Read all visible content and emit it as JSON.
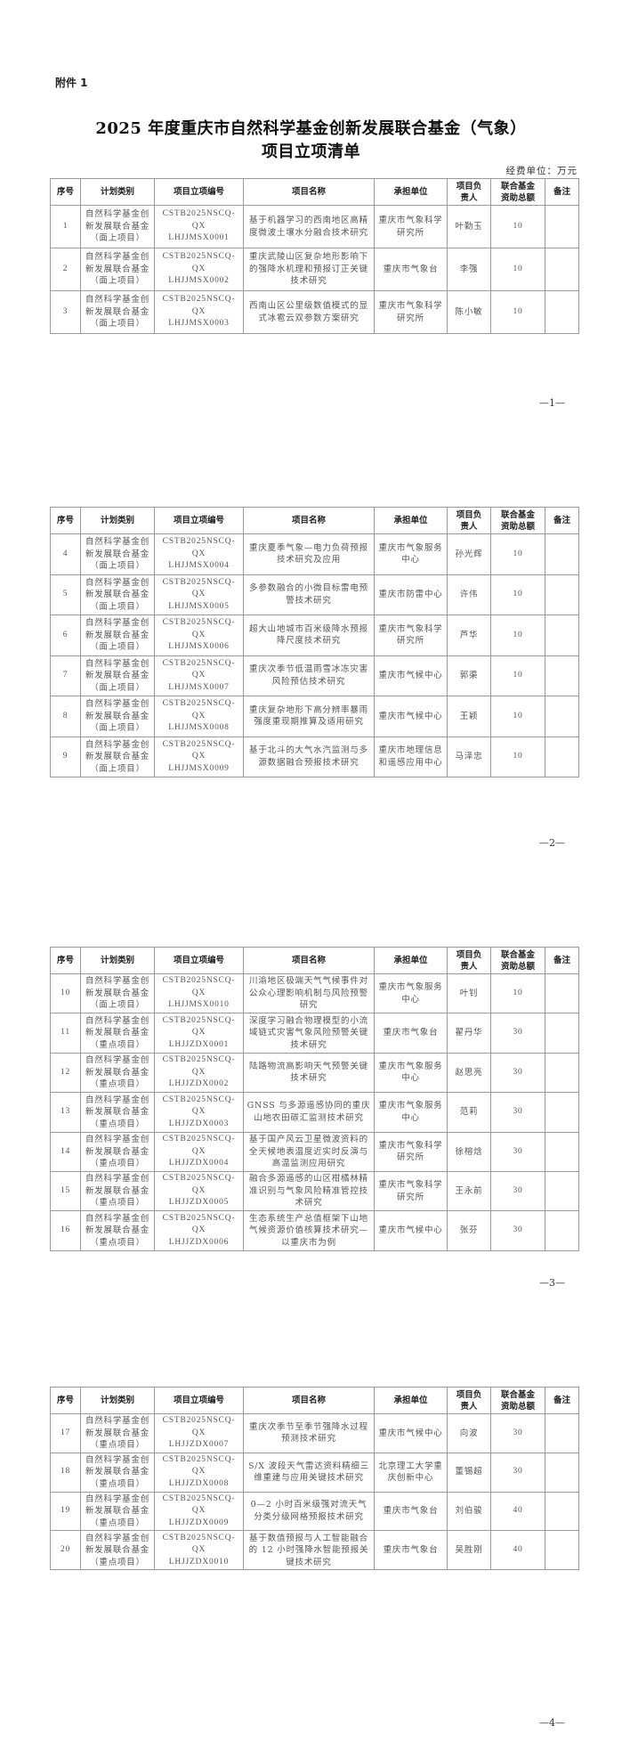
{
  "attachment_label": "附件 1",
  "title_line1": "2025 年度重庆市自然科学基金创新发展联合基金（气象）",
  "title_line2": "项目立项清单",
  "unit_note": "经费单位：万元",
  "headers": [
    "序号",
    "计划类别",
    "项目立项编号",
    "项目名称",
    "承担单位",
    "项目负责人",
    "联合基金资助总额",
    "备注"
  ],
  "page_numbers": [
    "—1—",
    "—2—",
    "—3—",
    "—4—"
  ],
  "rows": [
    {
      "no": "1",
      "category": "自然科学基金创新发展联合基金（面上项目）",
      "code": "CSTB2025NSCQ-QXLHJJMSX0001",
      "name": "基于机器学习的西南地区高精度微波土壤水分融合技术研究",
      "unit": "重庆市气象科学研究所",
      "leader": "叶勤玉",
      "amount": "10",
      "note": ""
    },
    {
      "no": "2",
      "category": "自然科学基金创新发展联合基金（面上项目）",
      "code": "CSTB2025NSCQ-QXLHJJMSX0002",
      "name": "重庆武陵山区复杂地形影响下的强降水机理和预报订正关键技术研究",
      "unit": "重庆市气象台",
      "leader": "李强",
      "amount": "10",
      "note": ""
    },
    {
      "no": "3",
      "category": "自然科学基金创新发展联合基金（面上项目）",
      "code": "CSTB2025NSCQ-QXLHJJMSX0003",
      "name": "西南山区公里级数值模式的显式冰雹云双参数方案研究",
      "unit": "重庆市气象科学研究所",
      "leader": "陈小敏",
      "amount": "10",
      "note": ""
    },
    {
      "no": "4",
      "category": "自然科学基金创新发展联合基金（面上项目）",
      "code": "CSTB2025NSCQ-QXLHJJMSX0004",
      "name": "重庆夏季气象—电力负荷预报技术研究及应用",
      "unit": "重庆市气象服务中心",
      "leader": "孙光辉",
      "amount": "10",
      "note": ""
    },
    {
      "no": "5",
      "category": "自然科学基金创新发展联合基金（面上项目）",
      "code": "CSTB2025NSCQ-QXLHJJMSX0005",
      "name": "多参数融合的小微目标雷电预警技术研究",
      "unit": "重庆市防雷中心",
      "leader": "许伟",
      "amount": "10",
      "note": ""
    },
    {
      "no": "6",
      "category": "自然科学基金创新发展联合基金（面上项目）",
      "code": "CSTB2025NSCQ-QXLHJJMSX0006",
      "name": "超大山地城市百米级降水预报降尺度技术研究",
      "unit": "重庆市气象科学研究所",
      "leader": "芦华",
      "amount": "10",
      "note": ""
    },
    {
      "no": "7",
      "category": "自然科学基金创新发展联合基金（面上项目）",
      "code": "CSTB2025NSCQ-QXLHJJMSX0007",
      "name": "重庆次季节低温雨雪冰冻灾害风险预估技术研究",
      "unit": "重庆市气候中心",
      "leader": "郭渠",
      "amount": "10",
      "note": ""
    },
    {
      "no": "8",
      "category": "自然科学基金创新发展联合基金（面上项目）",
      "code": "CSTB2025NSCQ-QXLHJJMSX0008",
      "name": "重庆复杂地形下高分辨率暴雨强度重现期推算及适用研究",
      "unit": "重庆市气候中心",
      "leader": "王颖",
      "amount": "10",
      "note": ""
    },
    {
      "no": "9",
      "category": "自然科学基金创新发展联合基金（面上项目）",
      "code": "CSTB2025NSCQ-QXLHJJMSX0009",
      "name": "基于北斗的大气水汽监测与多源数据融合预报技术研究",
      "unit": "重庆市地理信息和遥感应用中心",
      "leader": "马泽忠",
      "amount": "10",
      "note": ""
    },
    {
      "no": "10",
      "category": "自然科学基金创新发展联合基金（面上项目）",
      "code": "CSTB2025NSCQ-QXLHJJMSX0010",
      "name": "川渝地区极端天气气候事件对公众心理影响机制与风险预警研究",
      "unit": "重庆市气象服务中心",
      "leader": "叶钊",
      "amount": "10",
      "note": ""
    },
    {
      "no": "11",
      "category": "自然科学基金创新发展联合基金（重点项目）",
      "code": "CSTB2025NSCQ-QXLHJJZDX0001",
      "name": "深度学习融合物理模型的小流域链式灾害气象风险预警关键技术研究",
      "unit": "重庆市气象台",
      "leader": "翟丹华",
      "amount": "30",
      "note": ""
    },
    {
      "no": "12",
      "category": "自然科学基金创新发展联合基金（重点项目）",
      "code": "CSTB2025NSCQ-QXLHJJZDX0002",
      "name": "陆路物流高影响天气预警关键技术研究",
      "unit": "重庆市气象服务中心",
      "leader": "赵思亮",
      "amount": "30",
      "note": ""
    },
    {
      "no": "13",
      "category": "自然科学基金创新发展联合基金（重点项目）",
      "code": "CSTB2025NSCQ-QXLHJJZDX0003",
      "name": "GNSS 与多源遥感协同的重庆山地农田碳汇监测技术研究",
      "unit": "重庆市气象服务中心",
      "leader": "范莉",
      "amount": "30",
      "note": ""
    },
    {
      "no": "14",
      "category": "自然科学基金创新发展联合基金（重点项目）",
      "code": "CSTB2025NSCQ-QXLHJJZDX0004",
      "name": "基于国产风云卫星微波资料的全天候地表温度近实时反演与高温监测应用研究",
      "unit": "重庆市气象科学研究所",
      "leader": "徐榕焓",
      "amount": "30",
      "note": ""
    },
    {
      "no": "15",
      "category": "自然科学基金创新发展联合基金（重点项目）",
      "code": "CSTB2025NSCQ-QXLHJJZDX0005",
      "name": "融合多源遥感的山区柑橘林精准识别与气象风险精准管控技术研究",
      "unit": "重庆市气象科学研究所",
      "leader": "王永前",
      "amount": "30",
      "note": ""
    },
    {
      "no": "16",
      "category": "自然科学基金创新发展联合基金（重点项目）",
      "code": "CSTB2025NSCQ-QXLHJJZDX0006",
      "name": "生态系统生产总值框架下山地气候资源价值核算技术研究—以重庆市为例",
      "unit": "重庆市气候中心",
      "leader": "张芬",
      "amount": "30",
      "note": ""
    },
    {
      "no": "17",
      "category": "自然科学基金创新发展联合基金（重点项目）",
      "code": "CSTB2025NSCQ-QXLHJJZDX0007",
      "name": "重庆次季节至季节强降水过程预测技术研究",
      "unit": "重庆市气候中心",
      "leader": "向波",
      "amount": "30",
      "note": ""
    },
    {
      "no": "18",
      "category": "自然科学基金创新发展联合基金（重点项目）",
      "code": "CSTB2025NSCQ-QXLHJJZDX0008",
      "name": "S/X 波段天气雷达资料精细三维重建与应用关键技术研究",
      "unit": "北京理工大学重庆创新中心",
      "leader": "董锡超",
      "amount": "30",
      "note": ""
    },
    {
      "no": "19",
      "category": "自然科学基金创新发展联合基金（重点项目）",
      "code": "CSTB2025NSCQ-QXLHJJZDX0009",
      "name": "0—2 小时百米级强对流天气分类分级网格预报技术研究",
      "unit": "重庆市气象台",
      "leader": "刘伯骏",
      "amount": "40",
      "note": ""
    },
    {
      "no": "20",
      "category": "自然科学基金创新发展联合基金（重点项目）",
      "code": "CSTB2025NSCQ-QXLHJJZDX0010",
      "name": "基于数值预报与人工智能融合的 12 小时强降水智能预报关键技术研究",
      "unit": "重庆市气象台",
      "leader": "吴胜刚",
      "amount": "40",
      "note": ""
    }
  ]
}
